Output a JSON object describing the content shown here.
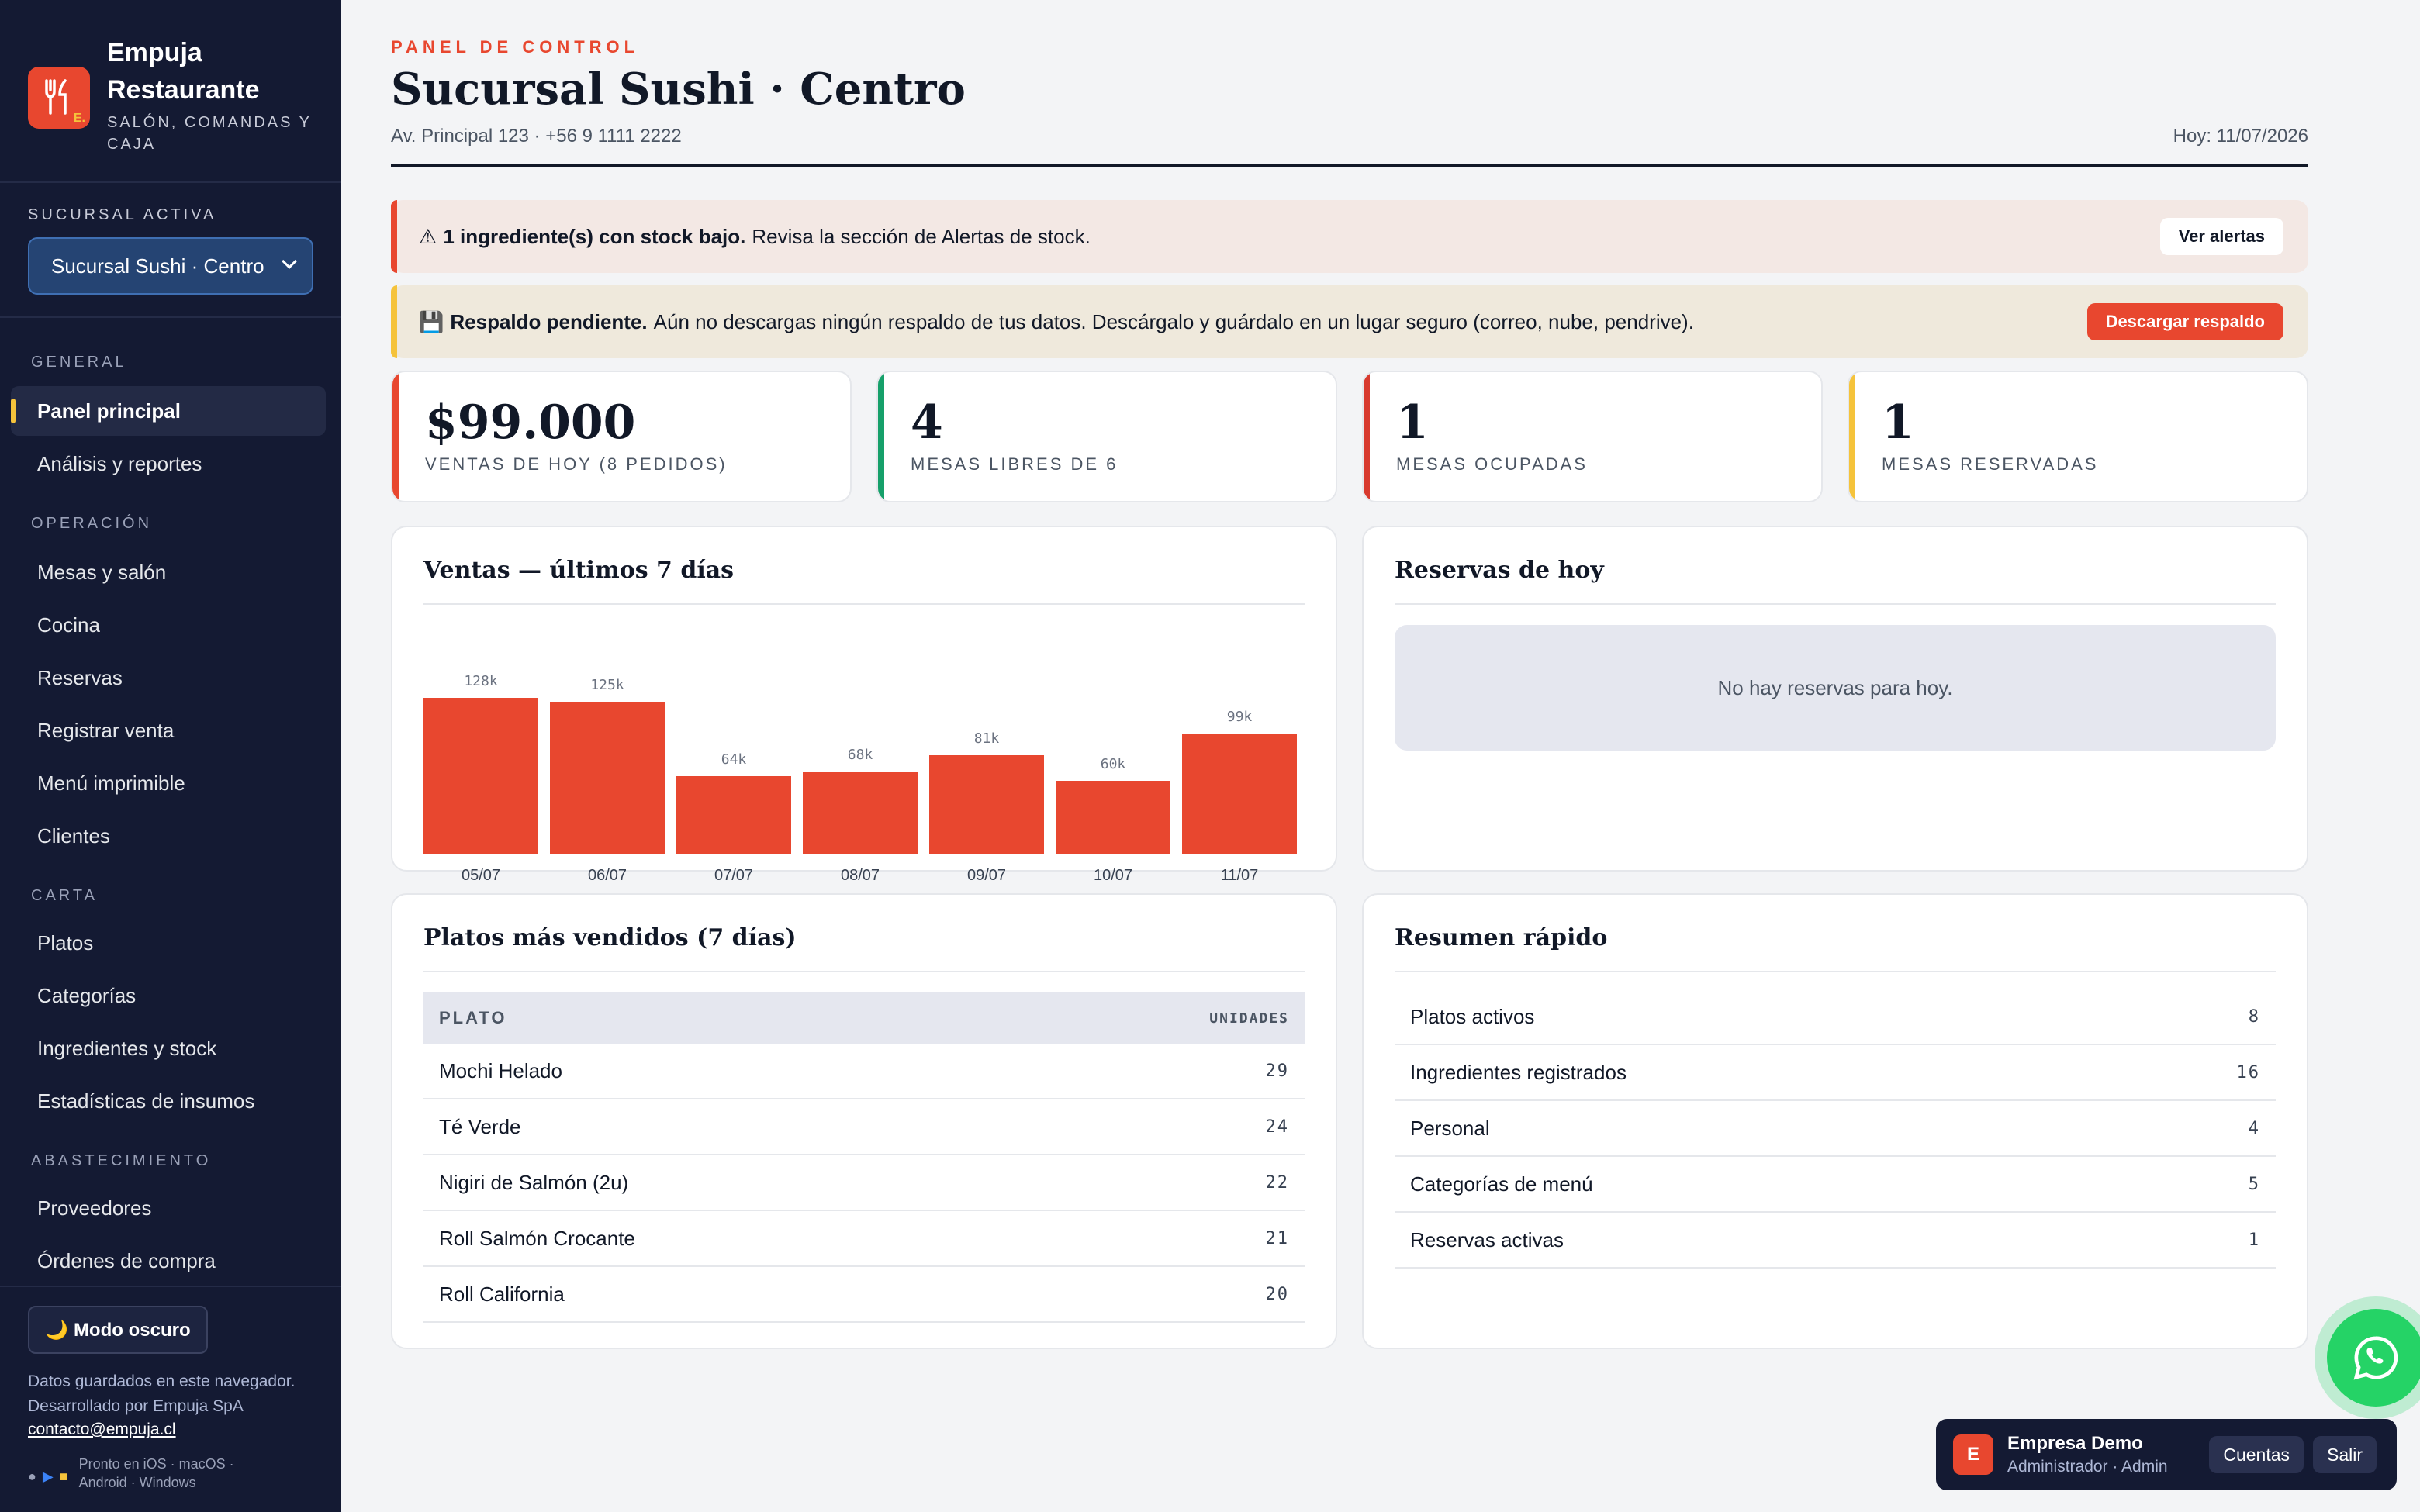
{
  "brand": {
    "name": "Empuja Restaurante",
    "subtitle": "SALÓN, COMANDAS Y CAJA",
    "logo_badge": "E."
  },
  "branch": {
    "label": "SUCURSAL ACTIVA",
    "selected": "Sucursal Sushi · Centro"
  },
  "nav": {
    "sections": [
      "GENERAL",
      "OPERACIÓN",
      "CARTA",
      "ABASTECIMIENTO"
    ],
    "general": [
      "Panel principal",
      "Análisis y reportes"
    ],
    "operacion": [
      "Mesas y salón",
      "Cocina",
      "Reservas",
      "Registrar venta",
      "Menú imprimible",
      "Clientes"
    ],
    "carta": [
      "Platos",
      "Categorías",
      "Ingredientes y stock",
      "Estadísticas de insumos"
    ],
    "abastecimiento": [
      "Proveedores",
      "Órdenes de compra"
    ]
  },
  "footer": {
    "dark_mode": "🌙 Modo oscuro",
    "info": "Datos guardados en este navegador. Desarrollado por Empuja SpA",
    "email": "contacto@empuja.cl",
    "platforms": "Pronto en iOS · macOS · Android · Windows"
  },
  "header": {
    "eyebrow": "PANEL DE CONTROL",
    "title": "Sucursal Sushi · Centro",
    "address": "Av. Principal 123 · +56 9 1111 2222",
    "today": "Hoy: 11/07/2026"
  },
  "alerts": {
    "stock": {
      "icon": "⚠",
      "bold": "1 ingrediente(s) con stock bajo.",
      "text": "Revisa la sección de Alertas de stock.",
      "button": "Ver alertas"
    },
    "backup": {
      "icon": "💾",
      "bold": "Respaldo pendiente.",
      "text": "Aún no descargas ningún respaldo de tus datos. Descárgalo y guárdalo en un lugar seguro (correo, nube, pendrive).",
      "button": "Descargar respaldo"
    }
  },
  "stats": [
    {
      "value": "$99.000",
      "label": "VENTAS DE HOY (8 PEDIDOS)",
      "color": "#e8472f"
    },
    {
      "value": "4",
      "label": "MESAS LIBRES DE 6",
      "color": "#16a06a"
    },
    {
      "value": "1",
      "label": "MESAS OCUPADAS",
      "color": "#d83a2e"
    },
    {
      "value": "1",
      "label": "MESAS RESERVADAS",
      "color": "#f5c33b"
    }
  ],
  "sales_card": {
    "title": "Ventas — últimos 7 días"
  },
  "chart_data": {
    "type": "bar",
    "categories": [
      "05/07",
      "06/07",
      "07/07",
      "08/07",
      "09/07",
      "10/07",
      "11/07"
    ],
    "values": [
      128,
      125,
      64,
      68,
      81,
      60,
      99
    ],
    "value_labels": [
      "128k",
      "125k",
      "64k",
      "68k",
      "81k",
      "60k",
      "99k"
    ],
    "ylim": [
      0,
      128
    ],
    "color": "#e8472f"
  },
  "reservations_card": {
    "title": "Reservas de hoy",
    "empty": "No hay reservas para hoy."
  },
  "top_dishes": {
    "title": "Platos más vendidos (7 días)",
    "col_dish": "PLATO",
    "col_units": "UNIDADES",
    "rows": [
      {
        "name": "Mochi Helado",
        "units": "29"
      },
      {
        "name": "Té Verde",
        "units": "24"
      },
      {
        "name": "Nigiri de Salmón (2u)",
        "units": "22"
      },
      {
        "name": "Roll Salmón Crocante",
        "units": "21"
      },
      {
        "name": "Roll California",
        "units": "20"
      }
    ]
  },
  "summary": {
    "title": "Resumen rápido",
    "rows": [
      {
        "label": "Platos activos",
        "value": "8"
      },
      {
        "label": "Ingredientes registrados",
        "value": "16"
      },
      {
        "label": "Personal",
        "value": "4"
      },
      {
        "label": "Categorías de menú",
        "value": "5"
      },
      {
        "label": "Reservas activas",
        "value": "1"
      }
    ]
  },
  "account": {
    "avatar": "E",
    "name": "Empresa Demo",
    "role": "Administrador · Admin",
    "accounts_btn": "Cuentas",
    "logout_btn": "Salir"
  }
}
